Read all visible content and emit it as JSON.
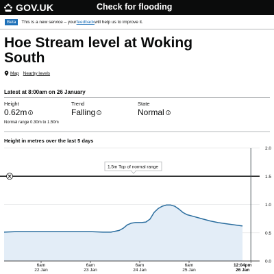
{
  "header": {
    "logo_text": "GOV.UK",
    "service_name": "Check for flooding"
  },
  "phase_banner": {
    "tag": "Beta",
    "text_before": "This is a new service – your ",
    "link": "feedback",
    "text_after": " will help us to improve it."
  },
  "page": {
    "title": "Hoe Stream level at Woking South",
    "links": {
      "map": "Map",
      "nearby": "Nearby levels"
    }
  },
  "latest": {
    "heading": "Latest at 8:00am on 26 January",
    "height": {
      "label": "Height",
      "value": "0.62m"
    },
    "trend": {
      "label": "Trend",
      "value": "Falling"
    },
    "state": {
      "label": "State",
      "value": "Normal"
    },
    "normal_range": "Normal range 0.30m to 1.50m"
  },
  "icons": {
    "info": "info-icon",
    "map": "map-pin-icon",
    "remove": "close-icon",
    "logo": "crown-icon"
  },
  "colors": {
    "link": "#1d70b8",
    "series_line": "#2a6d9e",
    "series_fill": "#e3edf7"
  },
  "chart_data": {
    "type": "area",
    "title": "Height in metres over the last 5 days",
    "xlabel": "",
    "ylabel": "",
    "ylim": [
      0,
      2
    ],
    "y_ticks": [
      "0.0",
      "0.5",
      "1.0",
      "1.5",
      "2.0"
    ],
    "x_ticks": [
      {
        "time": "6am",
        "date": "22 Jan",
        "hours": 6
      },
      {
        "time": "6am",
        "date": "23 Jan",
        "hours": 30
      },
      {
        "time": "6am",
        "date": "24 Jan",
        "hours": 54
      },
      {
        "time": "6am",
        "date": "25 Jan",
        "hours": 78
      },
      {
        "time": "12:04pm",
        "date": "26 Jan",
        "hours": 108.07
      }
    ],
    "threshold": {
      "value": 1.5,
      "label": "1.5m Top of normal range"
    },
    "series": [
      {
        "hours": [
          -12,
          -6,
          0,
          6,
          12,
          18,
          24,
          30,
          36,
          40,
          44,
          46,
          48,
          50,
          52,
          55,
          57,
          59,
          60,
          61,
          63,
          65,
          67,
          69,
          71,
          73,
          75,
          77,
          80,
          84,
          88,
          92,
          96,
          100,
          104
        ],
        "values": [
          0.51,
          0.52,
          0.52,
          0.52,
          0.52,
          0.52,
          0.52,
          0.52,
          0.51,
          0.51,
          0.54,
          0.58,
          0.64,
          0.67,
          0.68,
          0.68,
          0.69,
          0.74,
          0.8,
          0.86,
          0.93,
          0.97,
          0.99,
          0.99,
          0.97,
          0.92,
          0.86,
          0.82,
          0.79,
          0.75,
          0.71,
          0.68,
          0.66,
          0.64,
          0.62
        ]
      }
    ]
  }
}
